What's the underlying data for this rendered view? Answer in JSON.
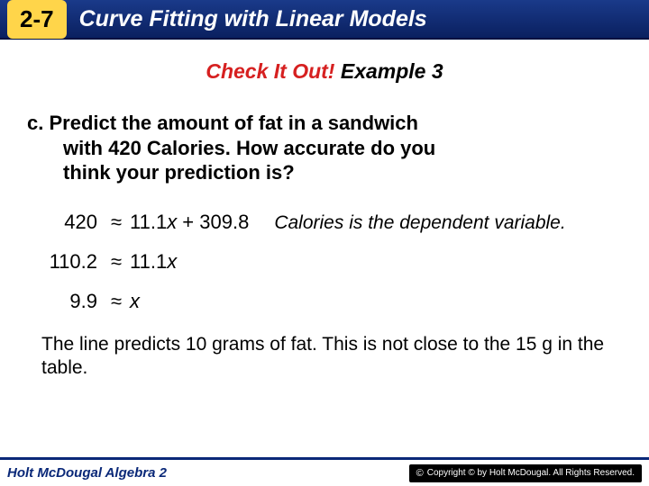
{
  "header": {
    "lesson_number": "2-7",
    "lesson_title": "Curve Fitting with Linear Models"
  },
  "check_it_out": {
    "red_text": "Check It Out!",
    "black_text": " Example 3"
  },
  "question": {
    "prefix": "c. ",
    "line1": "Predict the amount of fat in a sandwich",
    "line2": "with 420 Calories. How accurate do you",
    "line3": "think your prediction is?"
  },
  "equations": {
    "row1_left": "420",
    "row1_right_a": "11.1",
    "row1_right_b": "x",
    "row1_right_c": " + 309.8",
    "row1_note": "Calories is the dependent variable.",
    "row2_left": "110.2",
    "row2_right_a": "11.1",
    "row2_right_b": "x",
    "row3_left": "9.9",
    "row3_right": "x",
    "approx": "≈"
  },
  "conclusion": "The line predicts 10 grams of fat. This is not close to the 15 g in the table.",
  "footer": {
    "left": "Holt McDougal Algebra 2",
    "right": "Copyright © by Holt McDougal. All Rights Reserved."
  },
  "colors": {
    "header_bg_top": "#1a3a8a",
    "header_bg_bottom": "#0a2060",
    "badge_bg": "#ffd54a",
    "check_red": "#d62020",
    "footer_border": "#0a2878"
  }
}
